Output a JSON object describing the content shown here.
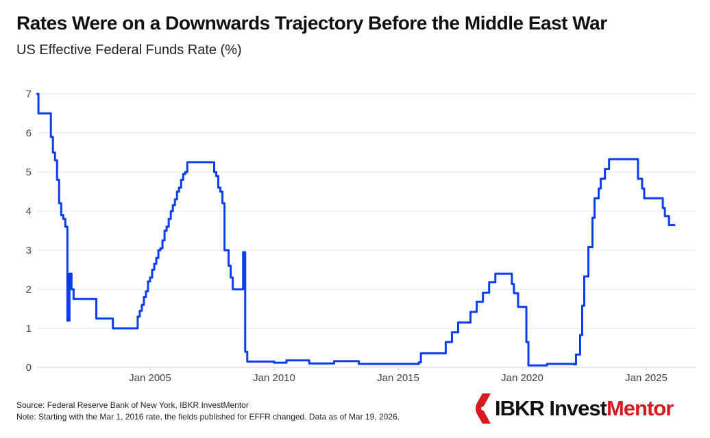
{
  "chart_data": {
    "type": "line",
    "title": "Rates Were on a Downwards Trajectory Before the Middle East War",
    "subtitle": "US Effective Federal Funds Rate (%)",
    "xlabel": "",
    "ylabel": "",
    "ylim": [
      0,
      7
    ],
    "xlim": [
      "2000-06",
      "2026-03"
    ],
    "yticks": [
      "0",
      "1",
      "2",
      "3",
      "4",
      "5",
      "6",
      "7"
    ],
    "xticks": [
      {
        "date": "2005-01",
        "label": "Jan 2005"
      },
      {
        "date": "2010-01",
        "label": "Jan 2010"
      },
      {
        "date": "2015-01",
        "label": "Jan 2015"
      },
      {
        "date": "2020-01",
        "label": "Jan 2020"
      },
      {
        "date": "2025-01",
        "label": "Jan 2025"
      }
    ],
    "grid": true,
    "line_color": "#0a3cf0",
    "points": [
      [
        "2000-06",
        7.0
      ],
      [
        "2000-07",
        6.5
      ],
      [
        "2000-12",
        6.5
      ],
      [
        "2001-01",
        5.9
      ],
      [
        "2001-02",
        5.5
      ],
      [
        "2001-03",
        5.3
      ],
      [
        "2001-04",
        4.8
      ],
      [
        "2001-05",
        4.2
      ],
      [
        "2001-06",
        3.9
      ],
      [
        "2001-07",
        3.8
      ],
      [
        "2001-08",
        3.6
      ],
      [
        "2001-09",
        1.2
      ],
      [
        "2001-10",
        2.4
      ],
      [
        "2001-11",
        2.0
      ],
      [
        "2001-12",
        1.75
      ],
      [
        "2002-10",
        1.75
      ],
      [
        "2002-11",
        1.25
      ],
      [
        "2003-06",
        1.25
      ],
      [
        "2003-07",
        1.0
      ],
      [
        "2004-06",
        1.0
      ],
      [
        "2004-07",
        1.3
      ],
      [
        "2004-08",
        1.45
      ],
      [
        "2004-09",
        1.6
      ],
      [
        "2004-10",
        1.8
      ],
      [
        "2004-11",
        1.95
      ],
      [
        "2004-12",
        2.2
      ],
      [
        "2005-01",
        2.3
      ],
      [
        "2005-02",
        2.5
      ],
      [
        "2005-03",
        2.65
      ],
      [
        "2005-04",
        2.8
      ],
      [
        "2005-05",
        3.0
      ],
      [
        "2005-06",
        3.05
      ],
      [
        "2005-07",
        3.25
      ],
      [
        "2005-08",
        3.5
      ],
      [
        "2005-09",
        3.6
      ],
      [
        "2005-10",
        3.8
      ],
      [
        "2005-11",
        4.0
      ],
      [
        "2005-12",
        4.15
      ],
      [
        "2006-01",
        4.3
      ],
      [
        "2006-02",
        4.5
      ],
      [
        "2006-03",
        4.6
      ],
      [
        "2006-04",
        4.8
      ],
      [
        "2006-05",
        4.95
      ],
      [
        "2006-06",
        5.0
      ],
      [
        "2006-07",
        5.25
      ],
      [
        "2007-07",
        5.25
      ],
      [
        "2007-08",
        5.0
      ],
      [
        "2007-09",
        4.9
      ],
      [
        "2007-10",
        4.6
      ],
      [
        "2007-11",
        4.5
      ],
      [
        "2007-12",
        4.2
      ],
      [
        "2008-01",
        3.0
      ],
      [
        "2008-02",
        3.0
      ],
      [
        "2008-03",
        2.6
      ],
      [
        "2008-04",
        2.3
      ],
      [
        "2008-05",
        2.0
      ],
      [
        "2008-09",
        2.0
      ],
      [
        "2008-10",
        2.95
      ],
      [
        "2008-11",
        0.4
      ],
      [
        "2008-12",
        0.15
      ],
      [
        "2010-01",
        0.12
      ],
      [
        "2010-07",
        0.18
      ],
      [
        "2011-06",
        0.1
      ],
      [
        "2012-06",
        0.16
      ],
      [
        "2013-06",
        0.09
      ],
      [
        "2014-06",
        0.09
      ],
      [
        "2015-11",
        0.13
      ],
      [
        "2015-12",
        0.36
      ],
      [
        "2016-12",
        0.65
      ],
      [
        "2017-03",
        0.9
      ],
      [
        "2017-06",
        1.15
      ],
      [
        "2017-12",
        1.42
      ],
      [
        "2018-03",
        1.68
      ],
      [
        "2018-06",
        1.91
      ],
      [
        "2018-09",
        2.18
      ],
      [
        "2018-12",
        2.4
      ],
      [
        "2019-07",
        2.4
      ],
      [
        "2019-08",
        2.13
      ],
      [
        "2019-09",
        1.9
      ],
      [
        "2019-11",
        1.55
      ],
      [
        "2020-03",
        0.65
      ],
      [
        "2020-04",
        0.05
      ],
      [
        "2021-01",
        0.09
      ],
      [
        "2022-02",
        0.08
      ],
      [
        "2022-03",
        0.33
      ],
      [
        "2022-05",
        0.83
      ],
      [
        "2022-06",
        1.58
      ],
      [
        "2022-07",
        2.33
      ],
      [
        "2022-09",
        3.08
      ],
      [
        "2022-11",
        3.83
      ],
      [
        "2022-12",
        4.33
      ],
      [
        "2023-02",
        4.58
      ],
      [
        "2023-03",
        4.83
      ],
      [
        "2023-05",
        5.08
      ],
      [
        "2023-07",
        5.33
      ],
      [
        "2024-09",
        4.83
      ],
      [
        "2024-11",
        4.58
      ],
      [
        "2024-12",
        4.33
      ],
      [
        "2025-09",
        4.08
      ],
      [
        "2025-10",
        3.87
      ],
      [
        "2025-12",
        3.64
      ],
      [
        "2026-03",
        3.64
      ]
    ]
  },
  "footer": {
    "source": "Source: Federal Reserve Bank of New York, IBKR InvestMentor",
    "note": "Note:  Starting with the Mar 1, 2016 rate, the fields published for EFFR changed. Data as of Mar 19, 2026."
  },
  "logo": {
    "text_black": "IBKR Invest",
    "text_red": "Mentor",
    "color": "#d71920"
  }
}
